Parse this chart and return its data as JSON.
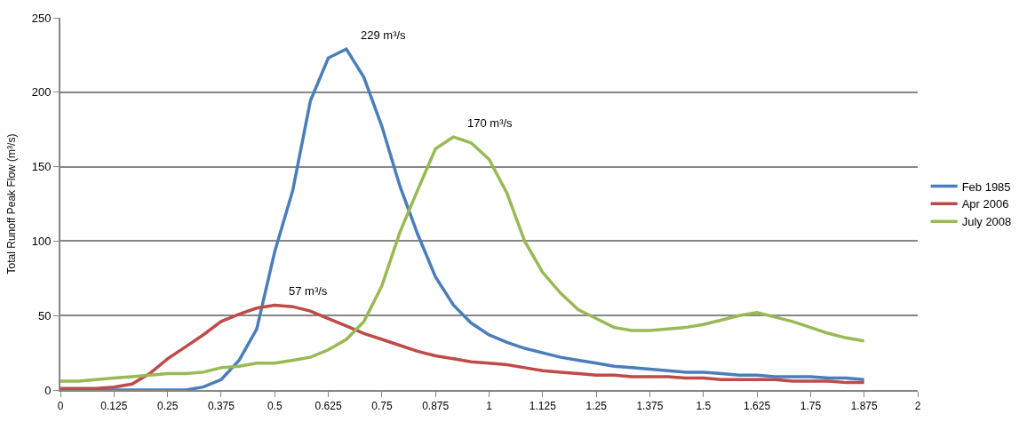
{
  "chart_data": {
    "type": "line",
    "ylabel": "Total Runoff Peak Flow (m³/s)",
    "x": [
      0,
      0.042,
      0.083,
      0.125,
      0.167,
      0.208,
      0.25,
      0.292,
      0.333,
      0.375,
      0.417,
      0.458,
      0.5,
      0.542,
      0.583,
      0.625,
      0.667,
      0.708,
      0.75,
      0.792,
      0.833,
      0.875,
      0.917,
      0.958,
      1,
      1.042,
      1.083,
      1.125,
      1.167,
      1.208,
      1.25,
      1.292,
      1.333,
      1.375,
      1.417,
      1.458,
      1.5,
      1.542,
      1.583,
      1.625,
      1.667,
      1.708,
      1.75,
      1.792,
      1.833,
      1.875
    ],
    "series": [
      {
        "name": "Feb 1985",
        "color": "#4a7ebb",
        "values": [
          0,
          0,
          0,
          0,
          0,
          0,
          0,
          0,
          2,
          7,
          20,
          41,
          93,
          134,
          194,
          223,
          229,
          210,
          177,
          137,
          105,
          76,
          57,
          45,
          37,
          32,
          28,
          25,
          22,
          20,
          18,
          16,
          15,
          14,
          13,
          12,
          12,
          11,
          10,
          10,
          9,
          9,
          9,
          8,
          8,
          7
        ]
      },
      {
        "name": "Apr 2006",
        "color": "#be4b48",
        "values": [
          1,
          1,
          1,
          2,
          4,
          11,
          21,
          29,
          37,
          46,
          51,
          55,
          57,
          56,
          53,
          48,
          43,
          38,
          34,
          30,
          26,
          23,
          21,
          19,
          18,
          17,
          15,
          13,
          12,
          11,
          10,
          10,
          9,
          9,
          9,
          8,
          8,
          7,
          7,
          7,
          7,
          6,
          6,
          6,
          5,
          5
        ]
      },
      {
        "name": "July 2008",
        "color": "#98b954",
        "values": [
          6,
          6,
          7,
          8,
          9,
          10,
          11,
          11,
          12,
          15,
          16,
          18,
          18,
          20,
          22,
          27,
          34,
          46,
          70,
          106,
          134,
          162,
          170,
          166,
          155,
          132,
          100,
          79,
          65,
          54,
          48,
          42,
          40,
          40,
          41,
          42,
          44,
          47,
          50,
          52,
          49,
          46,
          42,
          38,
          35,
          33
        ]
      }
    ],
    "xlim": [
      0,
      2
    ],
    "xticks": [
      0,
      0.125,
      0.25,
      0.375,
      0.5,
      0.625,
      0.75,
      0.875,
      1,
      1.125,
      1.25,
      1.375,
      1.5,
      1.625,
      1.75,
      1.875,
      2
    ],
    "ylim": [
      0,
      250
    ],
    "yticks": [
      0,
      50,
      100,
      150,
      200,
      250
    ],
    "annotations": [
      {
        "text": "229 m³/s",
        "x": 0.667,
        "y": 229
      },
      {
        "text": "57 m³/s",
        "x": 0.5,
        "y": 57
      },
      {
        "text": "170 m³/s",
        "x": 0.917,
        "y": 170
      }
    ],
    "grid": "y",
    "legend": "right",
    "marker": "none",
    "line_style": "solid"
  }
}
